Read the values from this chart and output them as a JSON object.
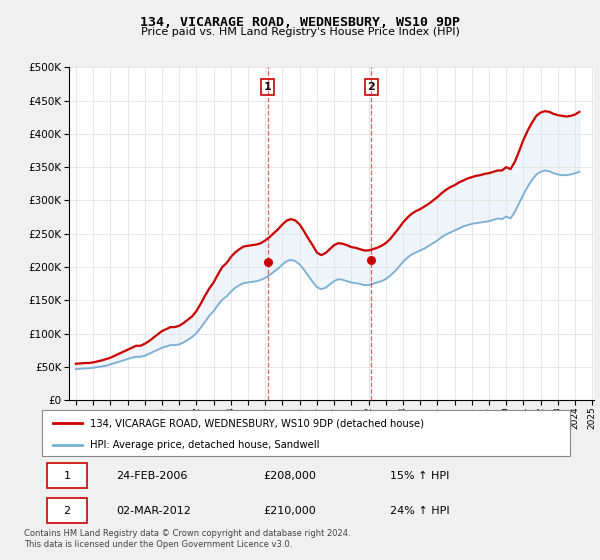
{
  "title": "134, VICARAGE ROAD, WEDNESBURY, WS10 9DP",
  "subtitle": "Price paid vs. HM Land Registry's House Price Index (HPI)",
  "ytick_values": [
    0,
    50000,
    100000,
    150000,
    200000,
    250000,
    300000,
    350000,
    400000,
    450000,
    500000
  ],
  "ylim": [
    0,
    500000
  ],
  "background_color": "#f0f0f0",
  "plot_bg": "#ffffff",
  "red_color": "#cc0000",
  "blue_color": "#7bafd4",
  "transaction1_x": 2006.15,
  "transaction2_x": 2012.17,
  "transaction1_price": 208000,
  "transaction2_price": 210000,
  "legend_line1": "134, VICARAGE ROAD, WEDNESBURY, WS10 9DP (detached house)",
  "legend_line2": "HPI: Average price, detached house, Sandwell",
  "table_row1": [
    "1",
    "24-FEB-2006",
    "£208,000",
    "15% ↑ HPI"
  ],
  "table_row2": [
    "2",
    "02-MAR-2012",
    "£210,000",
    "24% ↑ HPI"
  ],
  "footer": "Contains HM Land Registry data © Crown copyright and database right 2024.\nThis data is licensed under the Open Government Licence v3.0.",
  "hpi_data": {
    "years": [
      1995.0,
      1995.25,
      1995.5,
      1995.75,
      1996.0,
      1996.25,
      1996.5,
      1996.75,
      1997.0,
      1997.25,
      1997.5,
      1997.75,
      1998.0,
      1998.25,
      1998.5,
      1998.75,
      1999.0,
      1999.25,
      1999.5,
      1999.75,
      2000.0,
      2000.25,
      2000.5,
      2000.75,
      2001.0,
      2001.25,
      2001.5,
      2001.75,
      2002.0,
      2002.25,
      2002.5,
      2002.75,
      2003.0,
      2003.25,
      2003.5,
      2003.75,
      2004.0,
      2004.25,
      2004.5,
      2004.75,
      2005.0,
      2005.25,
      2005.5,
      2005.75,
      2006.0,
      2006.25,
      2006.5,
      2006.75,
      2007.0,
      2007.25,
      2007.5,
      2007.75,
      2008.0,
      2008.25,
      2008.5,
      2008.75,
      2009.0,
      2009.25,
      2009.5,
      2009.75,
      2010.0,
      2010.25,
      2010.5,
      2010.75,
      2011.0,
      2011.25,
      2011.5,
      2011.75,
      2012.0,
      2012.25,
      2012.5,
      2012.75,
      2013.0,
      2013.25,
      2013.5,
      2013.75,
      2014.0,
      2014.25,
      2014.5,
      2014.75,
      2015.0,
      2015.25,
      2015.5,
      2015.75,
      2016.0,
      2016.25,
      2016.5,
      2016.75,
      2017.0,
      2017.25,
      2017.5,
      2017.75,
      2018.0,
      2018.25,
      2018.5,
      2018.75,
      2019.0,
      2019.25,
      2019.5,
      2019.75,
      2020.0,
      2020.25,
      2020.5,
      2020.75,
      2021.0,
      2021.25,
      2021.5,
      2021.75,
      2022.0,
      2022.25,
      2022.5,
      2022.75,
      2023.0,
      2023.25,
      2023.5,
      2023.75,
      2024.0,
      2024.25
    ],
    "hpi_values": [
      47000,
      47500,
      48000,
      48200,
      49000,
      50000,
      51000,
      52000,
      54000,
      56000,
      58000,
      60000,
      62000,
      64000,
      65500,
      65500,
      67000,
      70000,
      73000,
      76000,
      79000,
      81000,
      83000,
      83000,
      84000,
      87000,
      91000,
      95000,
      101000,
      109000,
      118000,
      127000,
      134000,
      143000,
      151000,
      156000,
      163000,
      169000,
      173000,
      176000,
      177000,
      178000,
      179000,
      181000,
      184000,
      188000,
      193000,
      198000,
      204000,
      209000,
      211000,
      209000,
      204000,
      196000,
      187000,
      178000,
      170000,
      167000,
      169000,
      174000,
      179000,
      182000,
      181000,
      179000,
      177000,
      176000,
      175000,
      173000,
      173000,
      175000,
      177000,
      179000,
      182000,
      187000,
      193000,
      200000,
      208000,
      214000,
      219000,
      222000,
      225000,
      228000,
      232000,
      236000,
      240000,
      245000,
      249000,
      252000,
      255000,
      258000,
      261000,
      263000,
      265000,
      266000,
      267000,
      268000,
      269000,
      271000,
      273000,
      272000,
      276000,
      273000,
      283000,
      296000,
      309000,
      321000,
      331000,
      339000,
      343000,
      345000,
      344000,
      341000,
      339000,
      338000,
      338000,
      339000,
      341000,
      343000
    ],
    "red_values": [
      55000,
      55500,
      56000,
      56200,
      57000,
      58500,
      60000,
      62000,
      64000,
      67000,
      70000,
      73000,
      76000,
      79000,
      82000,
      82000,
      85000,
      89000,
      94000,
      99000,
      104000,
      107000,
      110000,
      110000,
      112000,
      116000,
      121000,
      126000,
      134000,
      145000,
      157000,
      168000,
      177000,
      189000,
      200000,
      206000,
      215000,
      222000,
      227000,
      231000,
      232000,
      233000,
      234000,
      236000,
      240000,
      245000,
      251000,
      257000,
      264000,
      270000,
      272000,
      270000,
      264000,
      254000,
      243000,
      233000,
      222000,
      218000,
      221000,
      227000,
      233000,
      236000,
      235000,
      233000,
      230000,
      229000,
      227000,
      225000,
      225000,
      227000,
      229000,
      232000,
      236000,
      242000,
      250000,
      258000,
      267000,
      274000,
      280000,
      284000,
      287000,
      291000,
      295000,
      300000,
      305000,
      311000,
      316000,
      320000,
      323000,
      327000,
      330000,
      333000,
      335000,
      337000,
      338000,
      340000,
      341000,
      343000,
      345000,
      345000,
      350000,
      347000,
      358000,
      374000,
      391000,
      405000,
      417000,
      427000,
      432000,
      434000,
      433000,
      430000,
      428000,
      427000,
      426000,
      427000,
      429000,
      433000
    ]
  }
}
